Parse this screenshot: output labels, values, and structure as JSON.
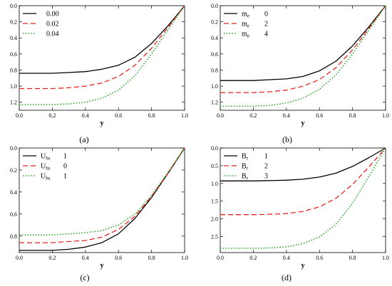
{
  "chart_data": [
    {
      "type": "line",
      "caption": "(a)",
      "xlabel": "y",
      "ylabel": "",
      "xlim": [
        0,
        1
      ],
      "ylim": [
        0,
        1.3
      ],
      "y_inverted": true,
      "x_ticks": [
        "0.0",
        "0.2",
        "0.4",
        "0.6",
        "0.8",
        "1.0"
      ],
      "y_ticks": [
        "0.0",
        "0.2",
        "0.4",
        "0.6",
        "0.8",
        "1.0",
        "1.2"
      ],
      "legend_position": "top-left",
      "series": [
        {
          "label_main": "",
          "label_sub": "",
          "label_value": "0.00",
          "color": "#000000",
          "dash": "solid",
          "x": [
            0,
            0.1,
            0.2,
            0.3,
            0.4,
            0.5,
            0.6,
            0.7,
            0.8,
            0.9,
            1.0
          ],
          "y": [
            0.84,
            0.84,
            0.84,
            0.83,
            0.82,
            0.79,
            0.74,
            0.64,
            0.47,
            0.25,
            0.0
          ]
        },
        {
          "label_main": "",
          "label_sub": "",
          "label_value": "0.02",
          "color": "#e8231f",
          "dash": "dashed",
          "x": [
            0,
            0.1,
            0.2,
            0.3,
            0.4,
            0.5,
            0.6,
            0.7,
            0.8,
            0.9,
            1.0
          ],
          "y": [
            1.03,
            1.03,
            1.03,
            1.02,
            1.0,
            0.96,
            0.88,
            0.74,
            0.53,
            0.27,
            0.0
          ]
        },
        {
          "label_main": "",
          "label_sub": "",
          "label_value": "0.04",
          "color": "#1aa51a",
          "dash": "dotted",
          "x": [
            0,
            0.1,
            0.2,
            0.3,
            0.4,
            0.5,
            0.6,
            0.7,
            0.8,
            0.9,
            1.0
          ],
          "y": [
            1.23,
            1.23,
            1.23,
            1.22,
            1.2,
            1.15,
            1.05,
            0.87,
            0.6,
            0.3,
            0.0
          ]
        }
      ]
    },
    {
      "type": "line",
      "caption": "(b)",
      "xlabel": "y",
      "ylabel": "",
      "xlim": [
        0,
        1
      ],
      "ylim": [
        0,
        1.3
      ],
      "y_inverted": true,
      "x_ticks": [
        "0.0",
        "0.2",
        "0.4",
        "0.6",
        "0.8",
        "1.0"
      ],
      "y_ticks": [
        "0.0",
        "0.2",
        "0.4",
        "0.6",
        "0.8",
        "1.0",
        "1.2"
      ],
      "legend_position": "top-left",
      "series": [
        {
          "label_main": "m",
          "label_sub": "e",
          "label_value": "0",
          "color": "#000000",
          "dash": "solid",
          "x": [
            0,
            0.1,
            0.2,
            0.3,
            0.4,
            0.5,
            0.6,
            0.7,
            0.8,
            0.9,
            1.0
          ],
          "y": [
            0.93,
            0.93,
            0.93,
            0.92,
            0.91,
            0.88,
            0.81,
            0.69,
            0.5,
            0.26,
            0.0
          ]
        },
        {
          "label_main": "m",
          "label_sub": "e",
          "label_value": "2",
          "color": "#e8231f",
          "dash": "dashed",
          "x": [
            0,
            0.1,
            0.2,
            0.3,
            0.4,
            0.5,
            0.6,
            0.7,
            0.8,
            0.9,
            1.0
          ],
          "y": [
            1.08,
            1.08,
            1.08,
            1.07,
            1.05,
            1.0,
            0.92,
            0.77,
            0.55,
            0.28,
            0.0
          ]
        },
        {
          "label_main": "m",
          "label_sub": "e",
          "label_value": "4",
          "color": "#1aa51a",
          "dash": "dotted",
          "x": [
            0,
            0.1,
            0.2,
            0.3,
            0.4,
            0.5,
            0.6,
            0.7,
            0.8,
            0.9,
            1.0
          ],
          "y": [
            1.25,
            1.25,
            1.25,
            1.24,
            1.21,
            1.15,
            1.04,
            0.86,
            0.6,
            0.3,
            0.0
          ]
        }
      ]
    },
    {
      "type": "line",
      "caption": "(c)",
      "xlabel": "y",
      "ylabel": "",
      "xlim": [
        0,
        1
      ],
      "ylim": [
        0,
        0.95
      ],
      "y_inverted": true,
      "x_ticks": [
        "0.0",
        "0.2",
        "0.4",
        "0.6",
        "0.8",
        "1.0"
      ],
      "y_ticks": [
        "0.0",
        "0.2",
        "0.4",
        "0.6",
        "0.8"
      ],
      "legend_position": "top-left",
      "series": [
        {
          "label_main": "U",
          "label_sub": "hs",
          "label_value": "1",
          "color": "#000000",
          "dash": "solid",
          "x": [
            0,
            0.1,
            0.2,
            0.3,
            0.4,
            0.5,
            0.6,
            0.7,
            0.8,
            0.9,
            1.0
          ],
          "y": [
            0.93,
            0.93,
            0.93,
            0.92,
            0.9,
            0.86,
            0.78,
            0.64,
            0.45,
            0.23,
            0.0
          ]
        },
        {
          "label_main": "U",
          "label_sub": "hs",
          "label_value": "0",
          "color": "#e8231f",
          "dash": "dashed",
          "x": [
            0,
            0.1,
            0.2,
            0.3,
            0.4,
            0.5,
            0.6,
            0.7,
            0.8,
            0.9,
            1.0
          ],
          "y": [
            0.86,
            0.86,
            0.86,
            0.85,
            0.84,
            0.81,
            0.74,
            0.62,
            0.44,
            0.23,
            0.0
          ]
        },
        {
          "label_main": "U",
          "label_sub": "hs",
          "label_value": "1",
          "color": "#1aa51a",
          "dash": "dotted",
          "x": [
            0,
            0.1,
            0.2,
            0.3,
            0.4,
            0.5,
            0.6,
            0.7,
            0.8,
            0.9,
            1.0
          ],
          "y": [
            0.79,
            0.79,
            0.79,
            0.78,
            0.77,
            0.75,
            0.7,
            0.6,
            0.43,
            0.22,
            0.0
          ]
        }
      ]
    },
    {
      "type": "line",
      "caption": "(d)",
      "xlabel": "y",
      "ylabel": "",
      "xlim": [
        0,
        1
      ],
      "ylim": [
        0,
        2.95
      ],
      "y_inverted": true,
      "x_ticks": [
        "0.0",
        "0.2",
        "0.4",
        "0.6",
        "0.8",
        "1.0"
      ],
      "y_ticks": [
        "0.0",
        "0.5",
        "1.0",
        "1.5",
        "2.0",
        "2.5"
      ],
      "legend_position": "top-left",
      "series": [
        {
          "label_main": "B",
          "label_sub": "r",
          "label_value": "1",
          "color": "#000000",
          "dash": "solid",
          "x": [
            0,
            0.1,
            0.2,
            0.3,
            0.4,
            0.5,
            0.6,
            0.7,
            0.8,
            0.9,
            1.0
          ],
          "y": [
            0.93,
            0.93,
            0.93,
            0.92,
            0.91,
            0.88,
            0.82,
            0.71,
            0.52,
            0.27,
            0.0
          ]
        },
        {
          "label_main": "B",
          "label_sub": "r",
          "label_value": "2",
          "color": "#e8231f",
          "dash": "dashed",
          "x": [
            0,
            0.1,
            0.2,
            0.3,
            0.4,
            0.5,
            0.6,
            0.7,
            0.8,
            0.9,
            1.0
          ],
          "y": [
            1.88,
            1.88,
            1.88,
            1.87,
            1.85,
            1.79,
            1.66,
            1.42,
            1.03,
            0.53,
            0.0
          ]
        },
        {
          "label_main": "B",
          "label_sub": "r",
          "label_value": "3",
          "color": "#1aa51a",
          "dash": "dotted",
          "x": [
            0,
            0.1,
            0.2,
            0.3,
            0.4,
            0.5,
            0.6,
            0.7,
            0.8,
            0.9,
            1.0
          ],
          "y": [
            2.83,
            2.83,
            2.83,
            2.82,
            2.79,
            2.7,
            2.51,
            2.15,
            1.56,
            0.8,
            0.0
          ]
        }
      ]
    }
  ]
}
